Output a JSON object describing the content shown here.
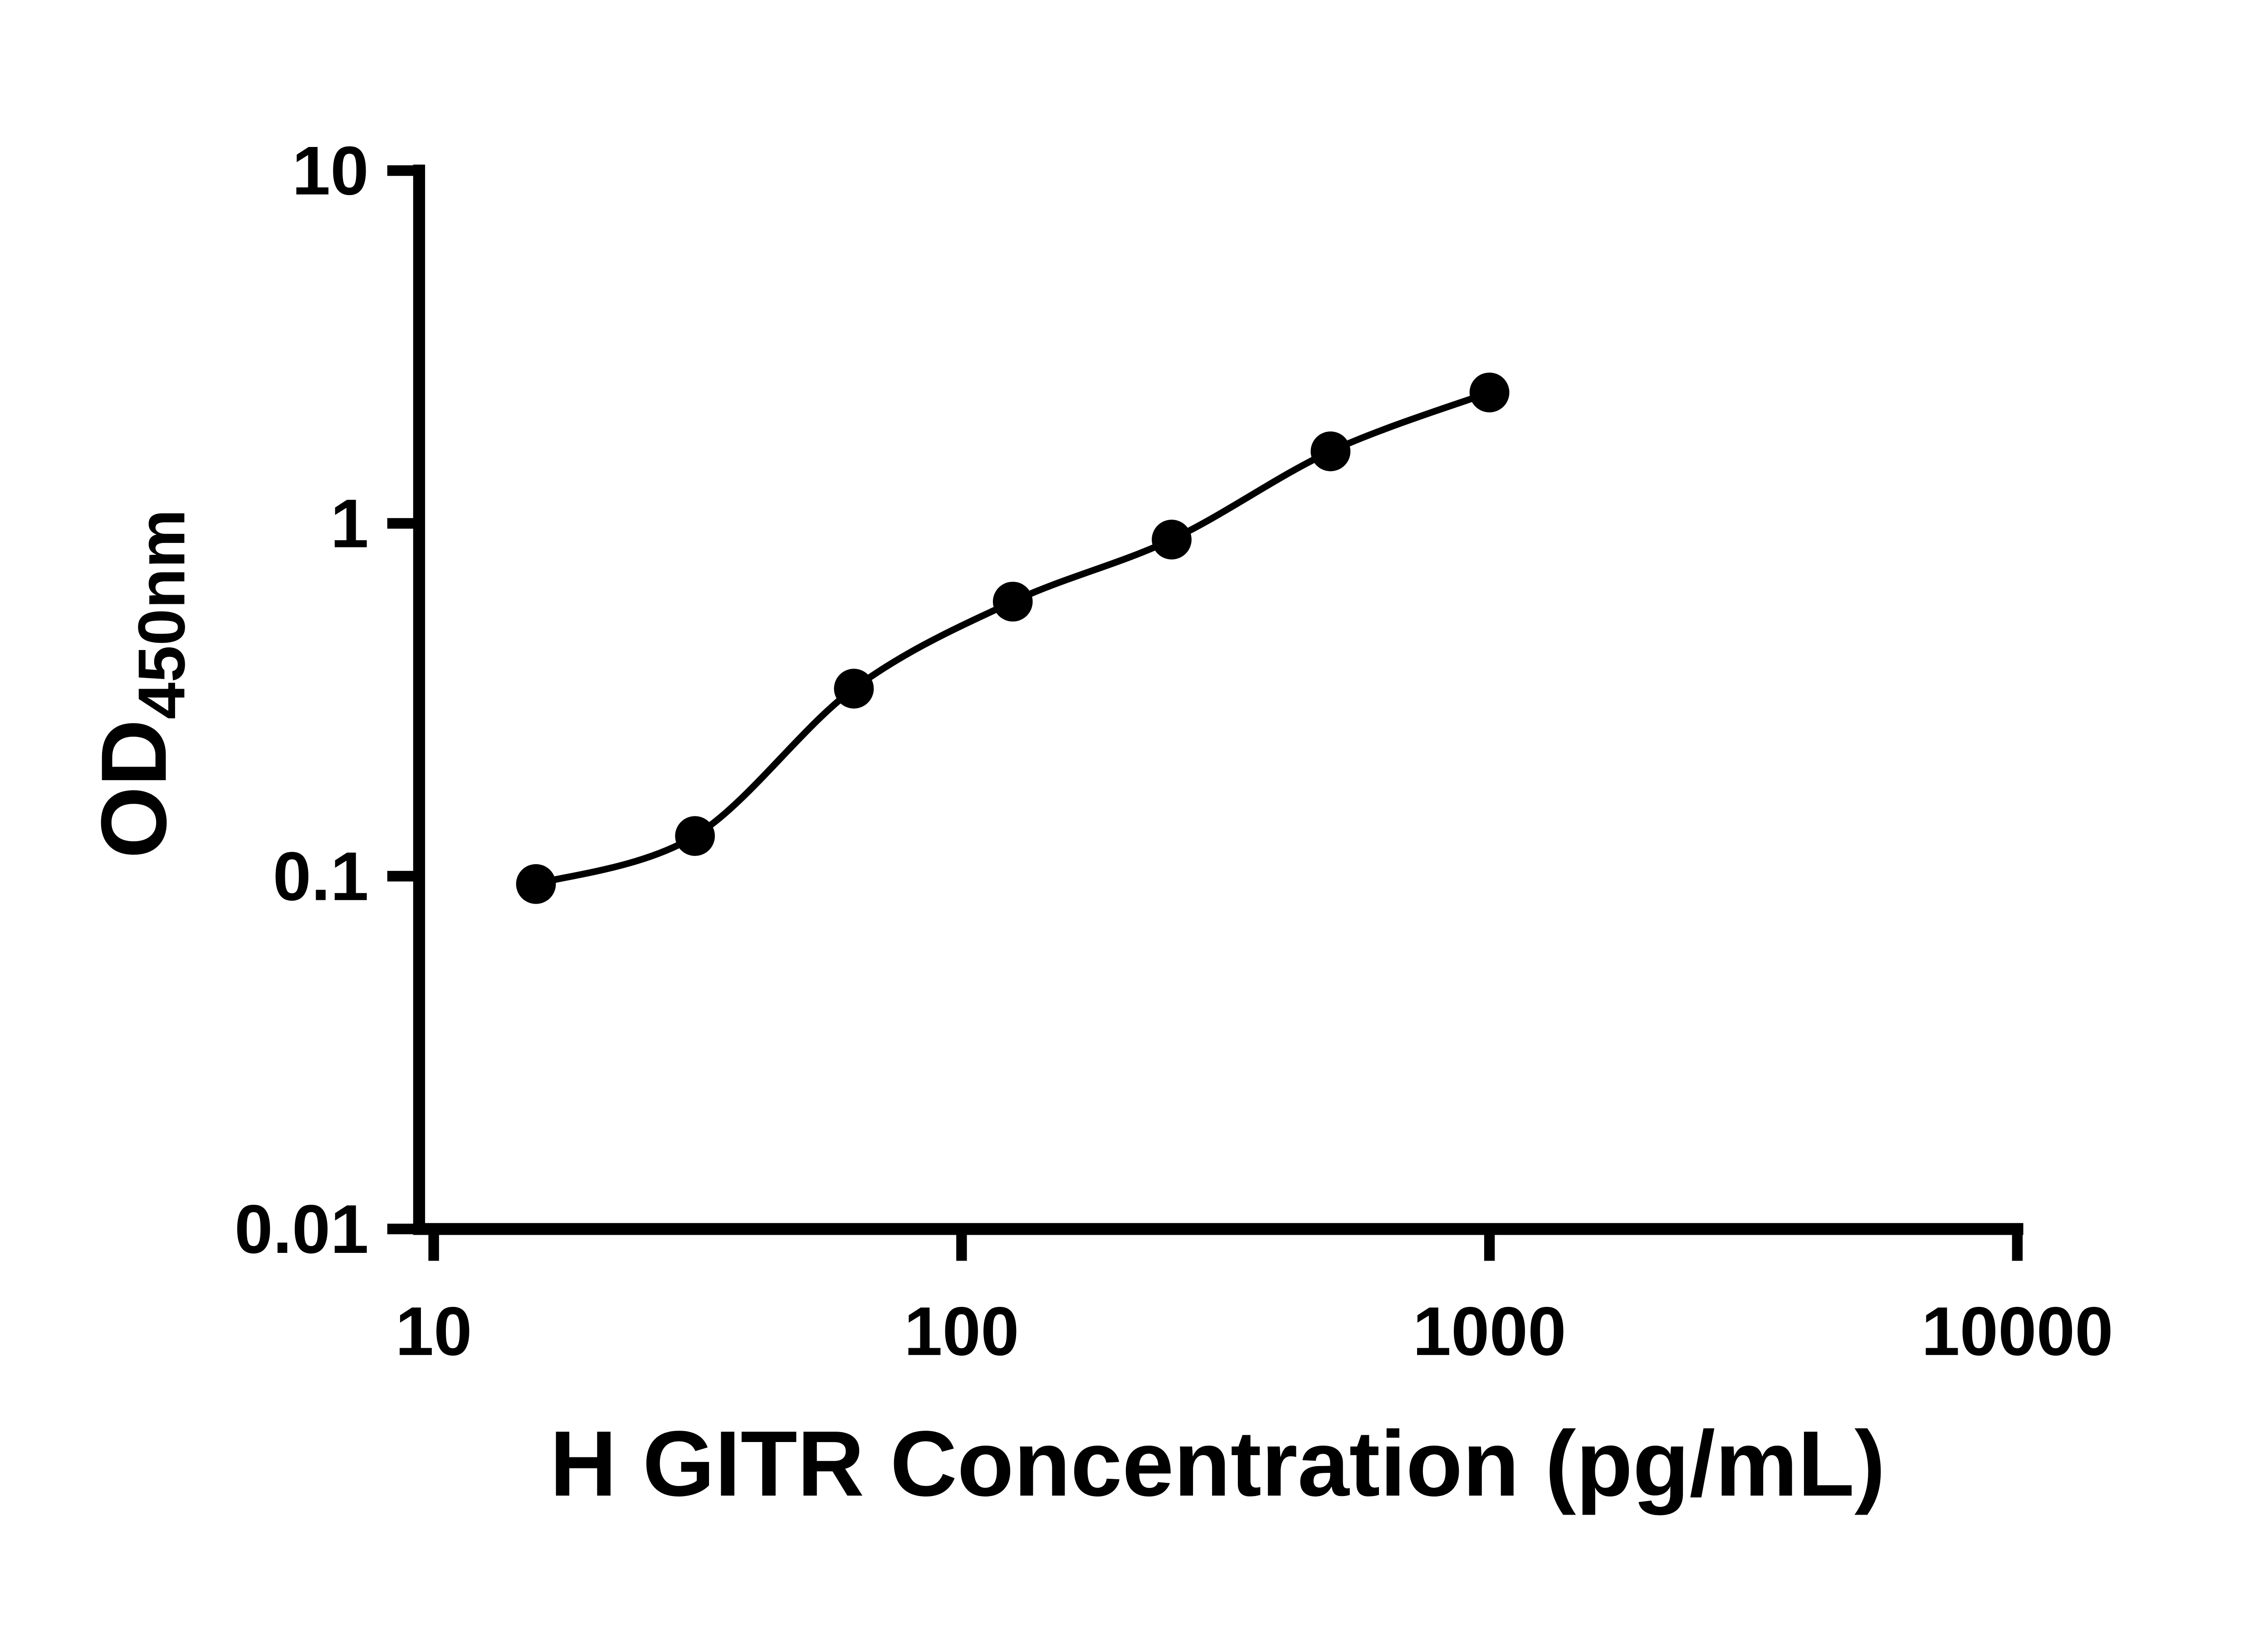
{
  "chart_data": {
    "type": "scatter",
    "title": "",
    "xlabel": "H GITR Concentration (pg/mL)",
    "ylabel": "OD",
    "ylabel_sub": "450nm",
    "x": [
      15.625,
      31.25,
      62.5,
      125,
      250,
      500,
      1000
    ],
    "y": [
      0.095,
      0.13,
      0.34,
      0.6,
      0.9,
      1.6,
      2.35
    ],
    "x_scale": "log",
    "y_scale": "log",
    "xlim": [
      10,
      10000
    ],
    "ylim": [
      0.01,
      10
    ],
    "x_ticks": [
      10,
      100,
      1000,
      10000
    ],
    "x_tick_labels": [
      "10",
      "100",
      "1000",
      "10000"
    ],
    "y_ticks": [
      0.01,
      0.1,
      1,
      10
    ],
    "y_tick_labels": [
      "0.01",
      "0.1",
      "1",
      "10"
    ],
    "grid": false,
    "legend": "none",
    "line_style": "smooth fitted standard curve through all points",
    "marker": "filled circle",
    "marker_color": "#000000",
    "line_color": "#000000",
    "axis_color": "#000000",
    "background": "#ffffff"
  }
}
